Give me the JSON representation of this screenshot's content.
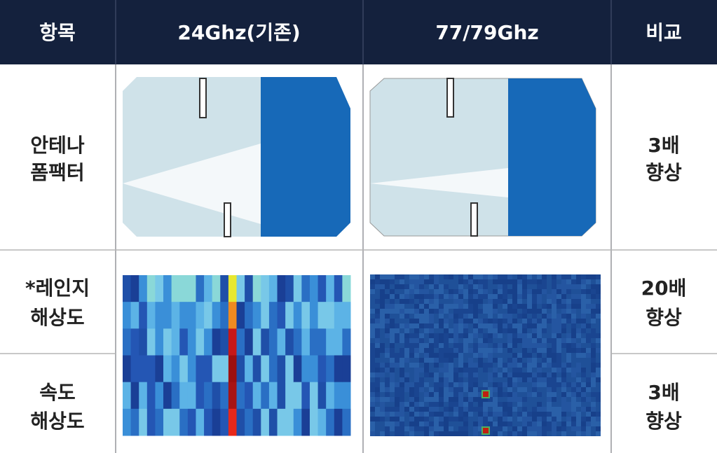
{
  "table": {
    "headers": [
      "항목",
      "24Ghz(기존)",
      "77/79Ghz",
      "비교"
    ],
    "rows": [
      {
        "label": [
          "안테나",
          "폼팩터"
        ],
        "comparison": [
          "3배",
          "향상"
        ]
      },
      {
        "label": [
          "*레인지",
          "해상도"
        ],
        "comparison": [
          "20배",
          "향상"
        ]
      },
      {
        "label": [
          "속도",
          "해상도"
        ],
        "comparison": [
          "3배",
          "향상"
        ]
      }
    ]
  }
}
